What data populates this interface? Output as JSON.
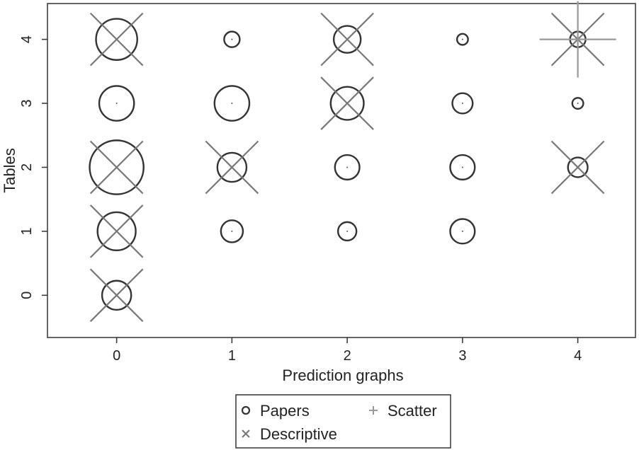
{
  "chart_data": {
    "type": "scatter",
    "title": "",
    "xlabel": "Prediction graphs",
    "ylabel": "Tables",
    "xlim": [
      -0.6,
      4.5
    ],
    "ylim": [
      -0.66,
      4.56
    ],
    "xticks": [
      0,
      1,
      2,
      3,
      4
    ],
    "yticks": [
      0,
      1,
      2,
      3,
      4
    ],
    "grid": false,
    "legend_position": "bottom",
    "series": [
      {
        "name": "Papers",
        "marker": "hollow-circle",
        "color": "#333333",
        "points": [
          {
            "x": 0,
            "y": 4,
            "size": 7
          },
          {
            "x": 1,
            "y": 4,
            "size": 1
          },
          {
            "x": 2,
            "y": 4,
            "size": 3
          },
          {
            "x": 3,
            "y": 4,
            "size": 0.5
          },
          {
            "x": 4,
            "y": 4,
            "size": 1
          },
          {
            "x": 0,
            "y": 3,
            "size": 5
          },
          {
            "x": 1,
            "y": 3,
            "size": 5
          },
          {
            "x": 2,
            "y": 3,
            "size": 4.5
          },
          {
            "x": 3,
            "y": 3,
            "size": 1.7
          },
          {
            "x": 4,
            "y": 3,
            "size": 0.5
          },
          {
            "x": 0,
            "y": 2,
            "size": 12
          },
          {
            "x": 1,
            "y": 2,
            "size": 3.5
          },
          {
            "x": 2,
            "y": 2,
            "size": 2.5
          },
          {
            "x": 3,
            "y": 2,
            "size": 2.5
          },
          {
            "x": 4,
            "y": 2,
            "size": 1.6
          },
          {
            "x": 0,
            "y": 1,
            "size": 6
          },
          {
            "x": 1,
            "y": 1,
            "size": 2
          },
          {
            "x": 2,
            "y": 1,
            "size": 1.4
          },
          {
            "x": 3,
            "y": 1,
            "size": 2.5
          },
          {
            "x": 0,
            "y": 0,
            "size": 3.5
          }
        ]
      },
      {
        "name": "Descriptive",
        "marker": "x",
        "color": "#777777",
        "points": [
          {
            "x": 0,
            "y": 4,
            "size": 1
          },
          {
            "x": 2,
            "y": 4,
            "size": 1
          },
          {
            "x": 4,
            "y": 4,
            "size": 1
          },
          {
            "x": 2,
            "y": 3,
            "size": 1
          },
          {
            "x": 0,
            "y": 2,
            "size": 1
          },
          {
            "x": 1,
            "y": 2,
            "size": 1
          },
          {
            "x": 4,
            "y": 2,
            "size": 1
          },
          {
            "x": 0,
            "y": 1,
            "size": 1
          },
          {
            "x": 0,
            "y": 0,
            "size": 1
          }
        ]
      },
      {
        "name": "Scatter",
        "marker": "plus",
        "color": "#999999",
        "points": [
          {
            "x": 4,
            "y": 4,
            "size": 1
          }
        ]
      }
    ]
  }
}
